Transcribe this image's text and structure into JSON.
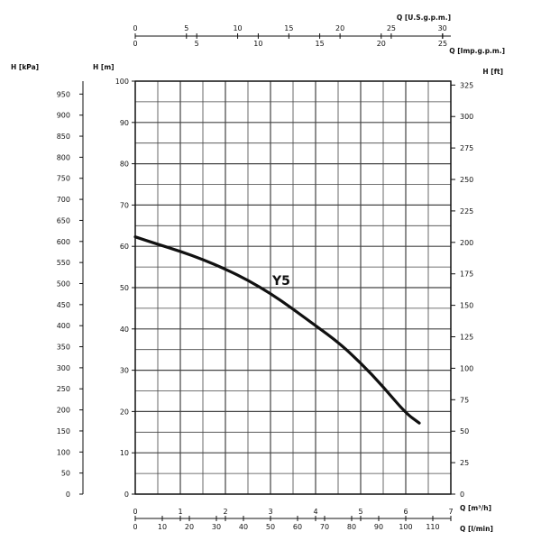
{
  "chart_data": {
    "type": "line",
    "title": "",
    "grid": true,
    "colors": {
      "curve": "#111111",
      "grid": "#444444",
      "axis": "#111111",
      "background": "#ffffff"
    },
    "x": [
      0,
      0.5,
      1,
      1.5,
      2,
      2.5,
      3,
      3.5,
      4,
      4.5,
      5,
      5.5,
      6,
      6.3
    ],
    "series": [
      {
        "name": "Y5",
        "y": [
          62.3,
          60.5,
          58.8,
          56.8,
          54.5,
          51.8,
          48.6,
          44.8,
          40.8,
          36.8,
          31.8,
          26.0,
          19.6,
          17.2
        ]
      }
    ],
    "axes": {
      "x_m3h": {
        "label": "Q [m³/h]",
        "range": [
          0,
          7
        ],
        "ticks": [
          0,
          1,
          2,
          3,
          4,
          5,
          6,
          7
        ]
      },
      "x_lmin": {
        "label": "Q [l/min]",
        "range": [
          0,
          116.67
        ],
        "ticks": [
          0,
          10,
          20,
          30,
          40,
          50,
          60,
          70,
          80,
          90,
          100,
          110
        ]
      },
      "x_usgpm": {
        "label": "Q [U.S.g.p.m.]",
        "range": [
          0,
          30.82
        ],
        "ticks": [
          0,
          5,
          10,
          15,
          20,
          25,
          30
        ]
      },
      "x_impgpm": {
        "label": "Q [Imp.g.p.m.]",
        "range": [
          0,
          25.66
        ],
        "ticks": [
          0,
          5,
          10,
          15,
          20,
          25
        ]
      },
      "y_m": {
        "label": "H [m]",
        "range": [
          0,
          100
        ],
        "ticks": [
          0,
          10,
          20,
          30,
          40,
          50,
          60,
          70,
          80,
          90,
          100
        ]
      },
      "y_kpa": {
        "label": "H [kPa]",
        "range": [
          0,
          980.7
        ],
        "ticks": [
          0,
          50,
          100,
          150,
          200,
          250,
          300,
          350,
          400,
          450,
          500,
          550,
          600,
          650,
          700,
          750,
          800,
          850,
          900,
          950
        ]
      },
      "y_ft": {
        "label": "H [ft]",
        "range": [
          0,
          328.1
        ],
        "ticks": [
          0,
          25,
          50,
          75,
          100,
          125,
          150,
          175,
          200,
          225,
          250,
          275,
          300,
          325
        ]
      }
    }
  }
}
